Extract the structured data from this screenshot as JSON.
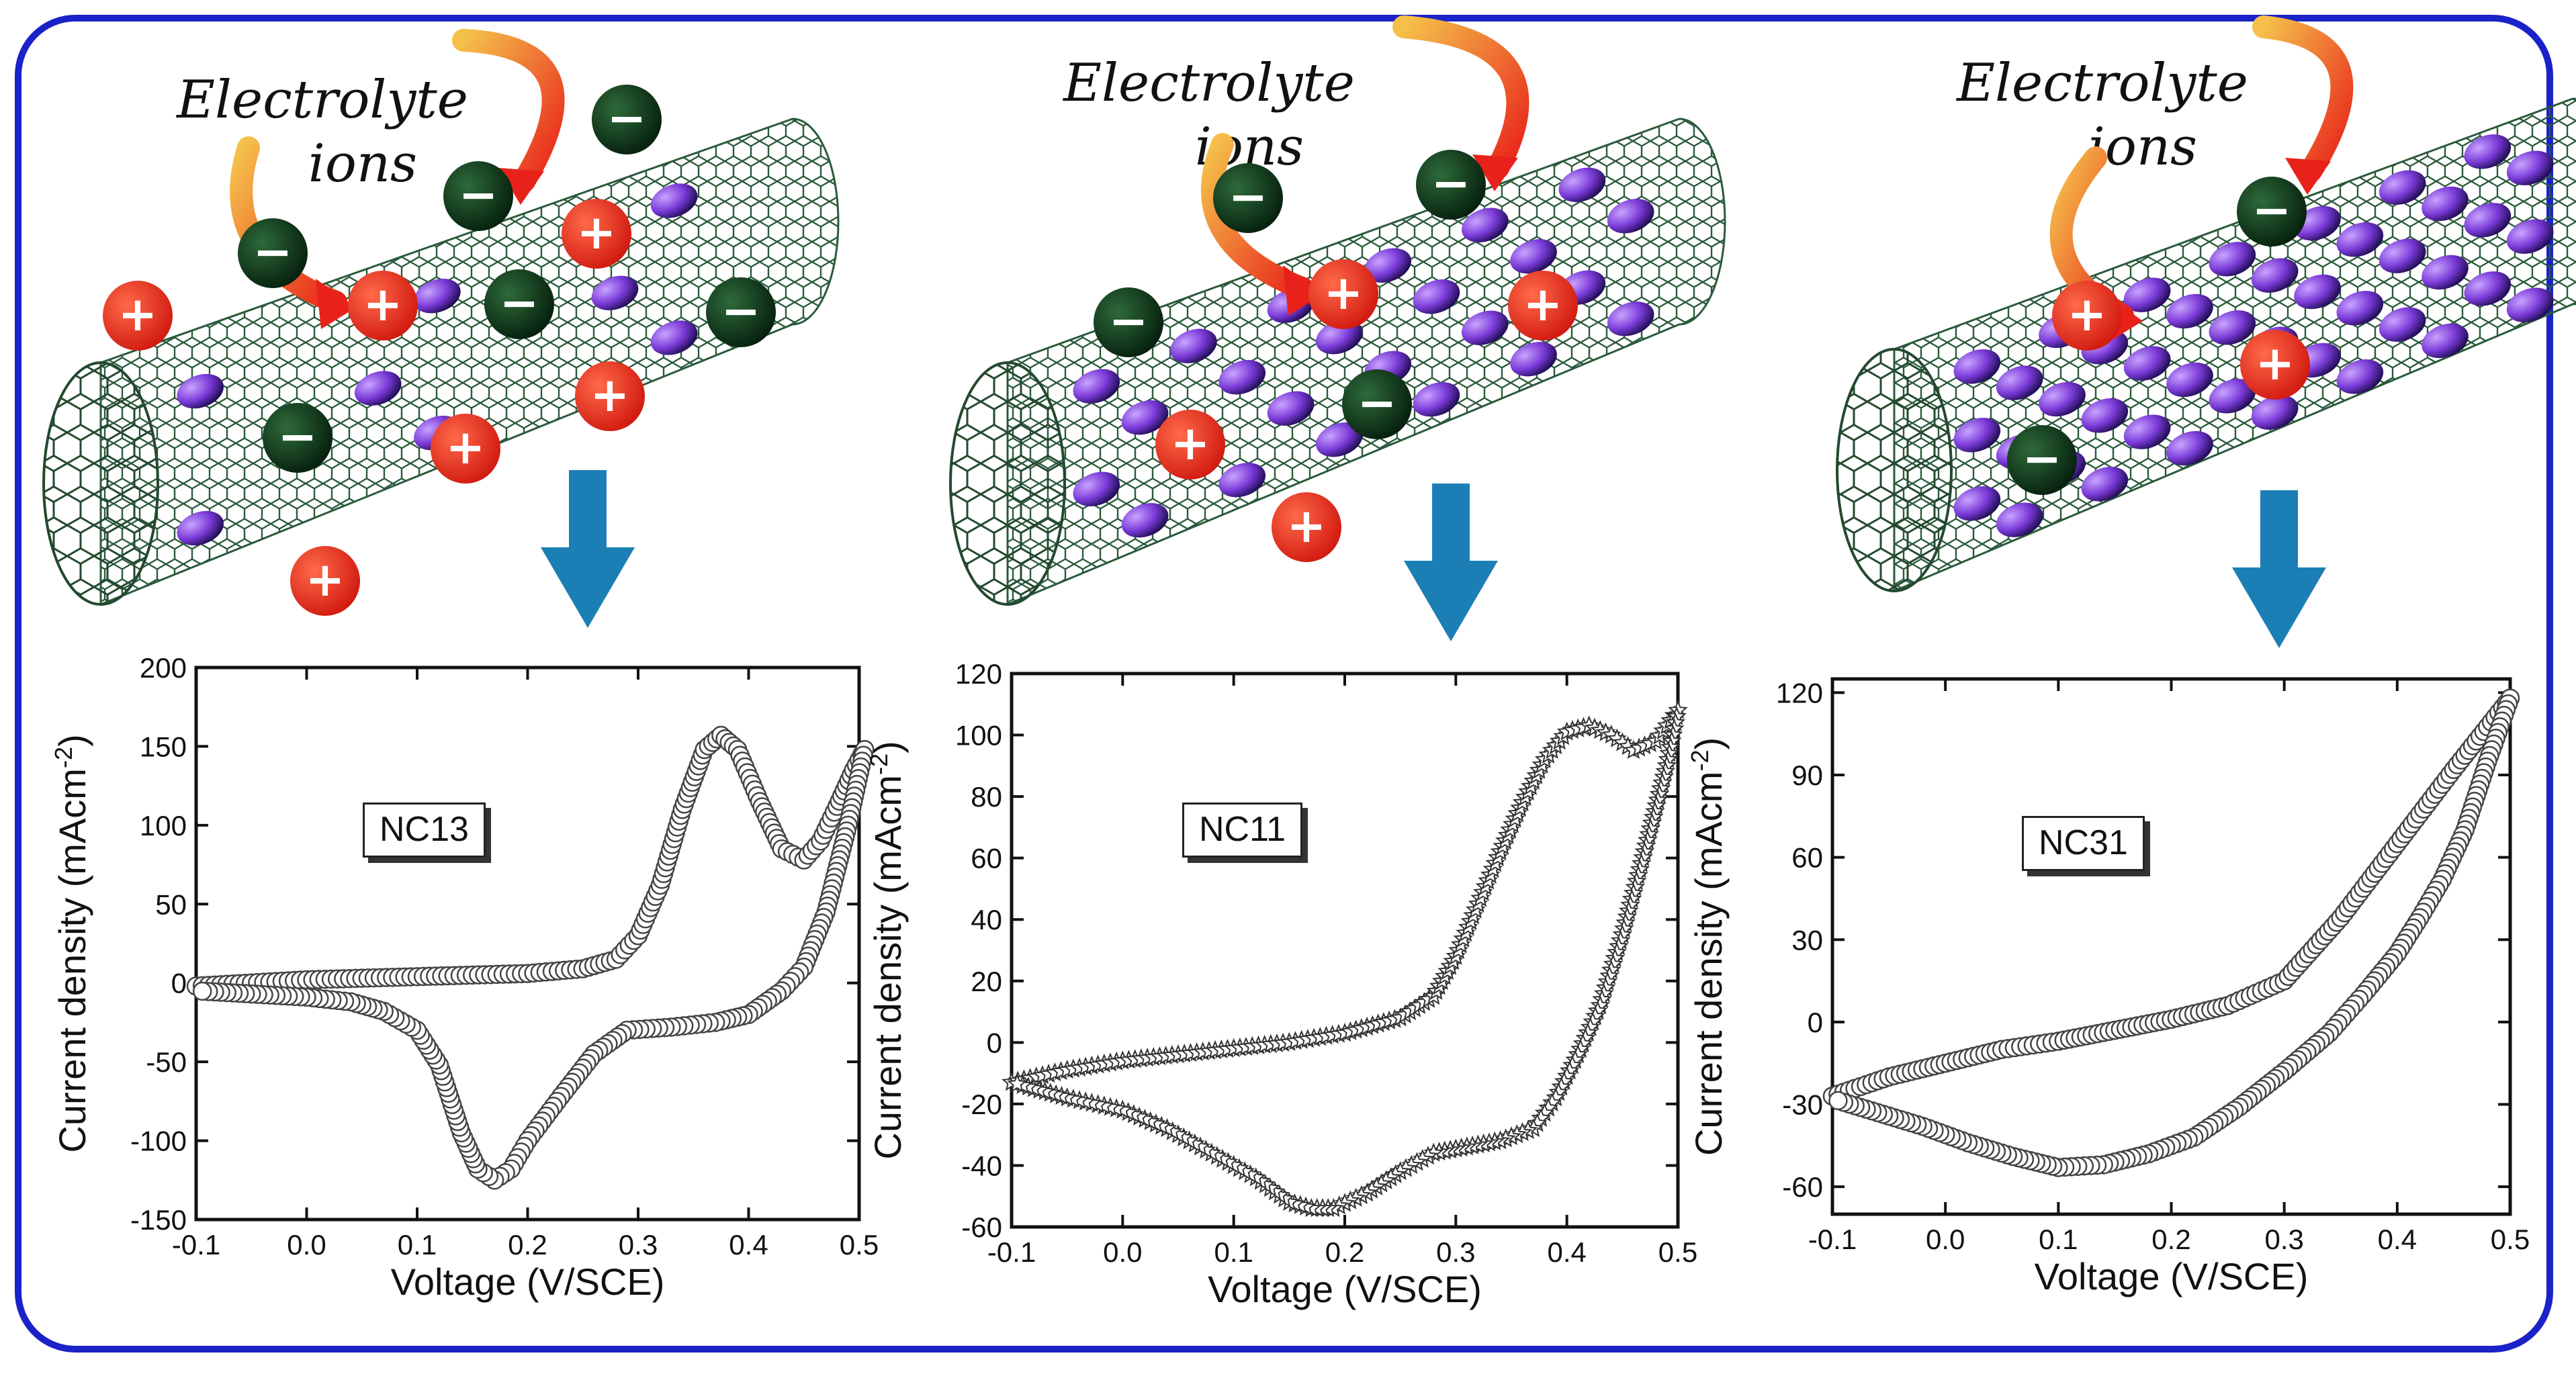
{
  "illustrations": [
    {
      "caption_line1": "Electrolyte",
      "caption_line2": "ions"
    },
    {
      "caption_line1": "Electrolyte",
      "caption_line2": "ions"
    },
    {
      "caption_line1": "Electrolyte",
      "caption_line2": "ions"
    }
  ],
  "colors": {
    "frame": "#1a22c8",
    "anion": "#0f3a1c",
    "cation": "#e8221a",
    "nanoparticle": "#7a3ad8",
    "nanotube": "#2a5a3a",
    "arrow_down": "#1b7fb5",
    "curve_marker": "#444444"
  },
  "chart_data": [
    {
      "type": "scatter",
      "label": "NC13",
      "xlabel": "Voltage (V/SCE)",
      "ylabel": "Current density (mAcm",
      "ylabel_sup": "-2",
      "ylabel_end": ")",
      "xlim": [
        -0.1,
        0.5
      ],
      "ylim": [
        -150,
        200
      ],
      "xticks": [
        "-0.1",
        "0.0",
        "0.1",
        "0.2",
        "0.3",
        "0.4",
        "0.5"
      ],
      "yticks": [
        "-150",
        "-100",
        "-50",
        "0",
        "50",
        "100",
        "150",
        "200"
      ],
      "marker": "circle",
      "series": [
        {
          "x": [
            -0.1,
            -0.05,
            0.0,
            0.05,
            0.1,
            0.15,
            0.2,
            0.25,
            0.28,
            0.3,
            0.32,
            0.34,
            0.36,
            0.375,
            0.39,
            0.41,
            0.43,
            0.45,
            0.465,
            0.48,
            0.495,
            0.505
          ],
          "y": [
            -2,
            0,
            2,
            3,
            4,
            5,
            6,
            9,
            15,
            30,
            62,
            110,
            148,
            157,
            148,
            115,
            85,
            78,
            90,
            112,
            135,
            148
          ]
        },
        {
          "x": [
            0.505,
            0.49,
            0.47,
            0.45,
            0.43,
            0.4,
            0.37,
            0.33,
            0.29,
            0.26,
            0.23,
            0.2,
            0.185,
            0.17,
            0.155,
            0.14,
            0.12,
            0.1,
            0.07,
            0.04,
            0.0,
            -0.05,
            -0.1
          ],
          "y": [
            148,
            100,
            45,
            10,
            -5,
            -20,
            -25,
            -28,
            -30,
            -45,
            -72,
            -100,
            -118,
            -125,
            -118,
            -95,
            -52,
            -30,
            -18,
            -12,
            -9,
            -7,
            -5
          ]
        }
      ]
    },
    {
      "type": "scatter",
      "label": "NC11",
      "xlabel": "Voltage (V/SCE)",
      "ylabel": "Current density (mAcm",
      "ylabel_sup": "-2",
      "ylabel_end": ")",
      "xlim": [
        -0.1,
        0.5
      ],
      "ylim": [
        -60,
        120
      ],
      "xticks": [
        "-0.1",
        "0.0",
        "0.1",
        "0.2",
        "0.3",
        "0.4",
        "0.5"
      ],
      "yticks": [
        "-60",
        "-40",
        "-20",
        "0",
        "20",
        "40",
        "60",
        "80",
        "100",
        "120"
      ],
      "marker": "star",
      "series": [
        {
          "x": [
            -0.1,
            -0.05,
            0.0,
            0.05,
            0.1,
            0.15,
            0.2,
            0.25,
            0.28,
            0.3,
            0.32,
            0.34,
            0.36,
            0.38,
            0.4,
            0.42,
            0.44,
            0.46,
            0.48,
            0.5
          ],
          "y": [
            -13,
            -9,
            -6,
            -4,
            -2,
            0,
            3,
            8,
            15,
            28,
            45,
            62,
            78,
            92,
            101,
            103,
            100,
            95,
            98,
            108
          ]
        },
        {
          "x": [
            0.5,
            0.49,
            0.47,
            0.45,
            0.43,
            0.41,
            0.39,
            0.37,
            0.34,
            0.31,
            0.28,
            0.25,
            0.22,
            0.19,
            0.17,
            0.15,
            0.12,
            0.08,
            0.04,
            0.0,
            -0.05,
            -0.1
          ],
          "y": [
            108,
            90,
            62,
            35,
            12,
            -4,
            -18,
            -28,
            -32,
            -34,
            -36,
            -42,
            -49,
            -54,
            -54,
            -52,
            -44,
            -36,
            -28,
            -22,
            -18,
            -13
          ]
        }
      ]
    },
    {
      "type": "scatter",
      "label": "NC31",
      "xlabel": "Voltage (V/SCE)",
      "ylabel": "Current density (mAcm",
      "ylabel_sup": "-2",
      "ylabel_end": ")",
      "xlim": [
        -0.1,
        0.5
      ],
      "ylim": [
        -70,
        125
      ],
      "xticks": [
        "-0.1",
        "0.0",
        "0.1",
        "0.2",
        "0.3",
        "0.4",
        "0.5"
      ],
      "yticks": [
        "-60",
        "-30",
        "0",
        "30",
        "60",
        "90",
        "120"
      ],
      "marker": "circle",
      "series": [
        {
          "x": [
            -0.1,
            -0.05,
            0.0,
            0.05,
            0.1,
            0.15,
            0.2,
            0.25,
            0.3,
            0.35,
            0.4,
            0.45,
            0.5
          ],
          "y": [
            -27,
            -20,
            -15,
            -10,
            -7,
            -3,
            1,
            6,
            15,
            38,
            65,
            92,
            118
          ]
        },
        {
          "x": [
            0.5,
            0.48,
            0.46,
            0.44,
            0.42,
            0.4,
            0.37,
            0.34,
            0.3,
            0.26,
            0.22,
            0.18,
            0.14,
            0.1,
            0.06,
            0.02,
            -0.02,
            -0.06,
            -0.1
          ],
          "y": [
            118,
            95,
            70,
            52,
            38,
            25,
            10,
            -4,
            -18,
            -31,
            -42,
            -48,
            -52,
            -53,
            -49,
            -44,
            -38,
            -33,
            -28
          ]
        }
      ]
    }
  ]
}
